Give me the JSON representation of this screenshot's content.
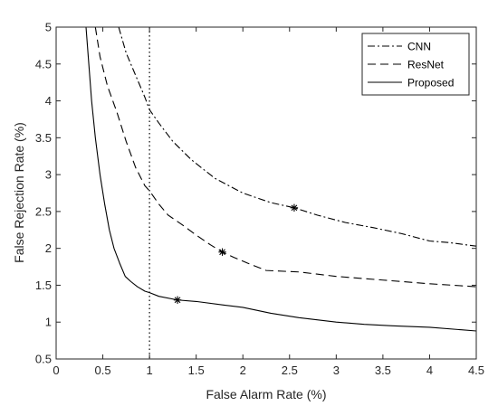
{
  "chart_data": {
    "type": "line",
    "xlabel": "False Alarm Rate (%)",
    "ylabel": "False Rejection Rate (%)",
    "xlim": [
      0,
      4.5
    ],
    "ylim": [
      0.5,
      5
    ],
    "x_ticks": [
      "0",
      "0.5",
      "1",
      "1.5",
      "2",
      "2.5",
      "3",
      "3.5",
      "4",
      "4.5"
    ],
    "y_ticks": [
      "0.5",
      "1",
      "1.5",
      "2",
      "2.5",
      "3",
      "3.5",
      "4",
      "4.5",
      "5"
    ],
    "grid": false,
    "legend_position": "top-right",
    "vertical_reference_line": {
      "x": 1,
      "style": "dotted"
    },
    "series": [
      {
        "name": "CNN",
        "style": "dash-dot",
        "color": "#000000",
        "x": [
          0.67,
          0.75,
          0.85,
          0.95,
          1.0,
          1.1,
          1.25,
          1.45,
          1.7,
          2.0,
          2.3,
          2.55,
          2.8,
          3.1,
          3.4,
          3.7,
          4.0,
          4.2,
          4.5
        ],
        "y": [
          5.0,
          4.65,
          4.35,
          4.05,
          3.88,
          3.7,
          3.45,
          3.2,
          2.95,
          2.75,
          2.62,
          2.55,
          2.45,
          2.35,
          2.28,
          2.2,
          2.1,
          2.08,
          2.03
        ],
        "marker": {
          "x": 2.55,
          "y": 2.55
        }
      },
      {
        "name": "ResNet",
        "style": "dashed",
        "color": "#000000",
        "x": [
          0.42,
          0.47,
          0.55,
          0.65,
          0.75,
          0.85,
          0.95,
          1.0,
          1.1,
          1.2,
          1.35,
          1.5,
          1.65,
          1.78,
          1.9,
          2.05,
          2.25,
          2.6,
          3.0,
          3.5,
          4.0,
          4.5
        ],
        "y": [
          5.0,
          4.6,
          4.2,
          3.85,
          3.45,
          3.1,
          2.85,
          2.78,
          2.6,
          2.45,
          2.32,
          2.18,
          2.05,
          1.95,
          1.88,
          1.8,
          1.7,
          1.68,
          1.62,
          1.57,
          1.52,
          1.48
        ],
        "marker": {
          "x": 1.78,
          "y": 1.95
        }
      },
      {
        "name": "Proposed",
        "style": "solid",
        "color": "#000000",
        "x": [
          0.32,
          0.35,
          0.38,
          0.42,
          0.47,
          0.52,
          0.57,
          0.62,
          0.68,
          0.74,
          0.8,
          0.87,
          0.95,
          1.0,
          1.1,
          1.3,
          1.5,
          1.8,
          2.0,
          2.3,
          2.6,
          3.0,
          3.3,
          3.6,
          4.0,
          4.3,
          4.5
        ],
        "y": [
          5.0,
          4.5,
          4.0,
          3.5,
          3.0,
          2.6,
          2.25,
          2.0,
          1.8,
          1.62,
          1.55,
          1.48,
          1.42,
          1.4,
          1.35,
          1.3,
          1.28,
          1.23,
          1.2,
          1.12,
          1.06,
          1.0,
          0.97,
          0.95,
          0.93,
          0.9,
          0.88
        ],
        "marker": {
          "x": 1.3,
          "y": 1.3
        }
      }
    ]
  }
}
